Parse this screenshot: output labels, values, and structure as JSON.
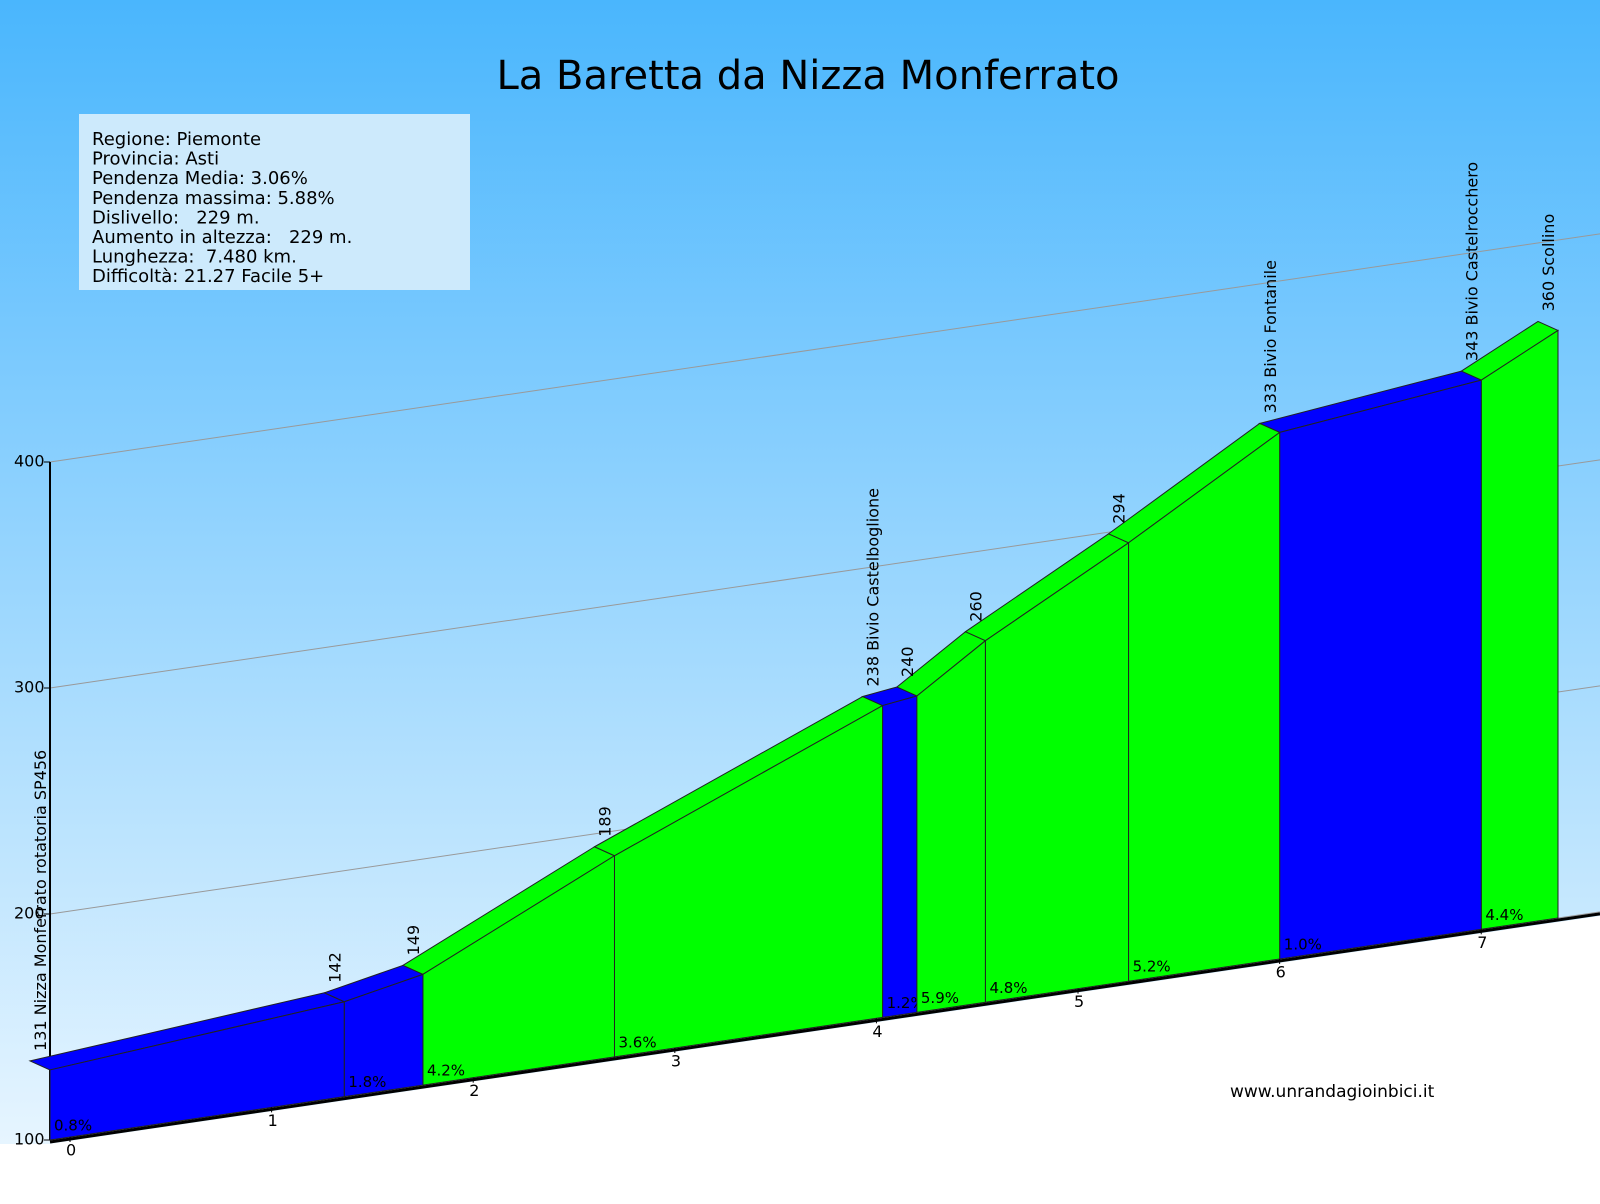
{
  "chart_data": {
    "type": "profile",
    "title": "La Baretta da Nizza Monferrato",
    "info": [
      "Regione: Piemonte",
      "Provincia: Asti",
      "Pendenza Media: 3.06%",
      "Pendenza massima: 5.88%",
      "Dislivello:   229 m.",
      "Aumento in altezza:   229 m.",
      "Lunghezza:  7.480 km.",
      "Difficoltà: 21.27 Facile 5+"
    ],
    "x": [
      0,
      1.46,
      1.85,
      2.8,
      4.13,
      4.3,
      4.64,
      5.35,
      6.1,
      7.1,
      7.48
    ],
    "elevations": [
      131,
      142,
      149,
      189,
      238,
      240,
      260,
      294,
      333,
      343,
      360
    ],
    "value_labels": [
      "131 Nizza Monferrato rotatoria SP456",
      "142",
      "149",
      "189",
      "238 Bivio Castelboglione",
      "240",
      "260",
      "294",
      "333 Bivio Fontanile",
      "343 Bivio Castelrocchero",
      "360 Scollino"
    ],
    "grades": [
      0.8,
      1.8,
      4.2,
      3.6,
      1.2,
      5.9,
      4.8,
      5.2,
      1.0,
      4.4
    ],
    "grade_labels": [
      "0.8%",
      "1.8%",
      "4.2%",
      "3.6%",
      "1.2%",
      "5.9%",
      "4.8%",
      "5.2%",
      "1.0%",
      "4.4%"
    ],
    "colors": [
      "#0000ff",
      "#0000ff",
      "#00ff00",
      "#00ff00",
      "#0000ff",
      "#00ff00",
      "#00ff00",
      "#00ff00",
      "#0000ff",
      "#00ff00"
    ],
    "xlim": [
      0,
      7.48
    ],
    "xticks": [
      0,
      1,
      2,
      3,
      4,
      5,
      6,
      7
    ],
    "ylim": [
      100,
      400
    ],
    "yticks": [
      100,
      200,
      300,
      400
    ],
    "grid": true,
    "credit": "www.unrandagioinbici.it"
  }
}
